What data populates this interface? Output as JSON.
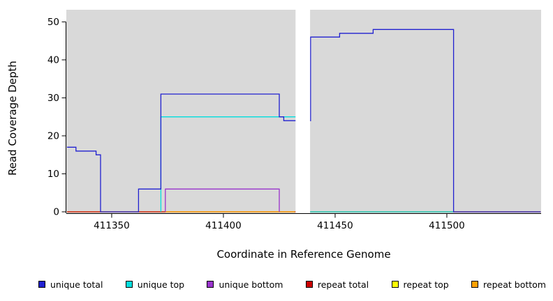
{
  "chart_data": {
    "type": "line",
    "title": "",
    "xlabel": "Coordinate in Reference Genome",
    "ylabel": "Read Coverage Depth",
    "xlim": [
      411329.7,
      411542.2
    ],
    "ylim": [
      -0.4,
      53.2
    ],
    "xticks": [
      411350,
      411400,
      411450,
      411500
    ],
    "yticks": [
      0,
      10,
      20,
      30,
      40,
      50
    ],
    "panel_background": "#d9d9d9",
    "masked_regions": [
      [
        411432.3,
        411438.8
      ]
    ],
    "grid": false,
    "legend_position": "bottom",
    "series": [
      {
        "id": "repeat-top",
        "name": "repeat top",
        "color": "#ffff00",
        "points": [
          [
            411330,
            0
          ],
          [
            411542,
            0
          ]
        ]
      },
      {
        "id": "repeat-total",
        "name": "repeat total",
        "color": "#cc0000",
        "points": [
          [
            411330,
            0
          ],
          [
            411542,
            0
          ]
        ]
      },
      {
        "id": "repeat-bottom",
        "name": "repeat bottom",
        "color": "#ffa000",
        "points": [
          [
            411374,
            0
          ],
          [
            411432,
            0
          ]
        ]
      },
      {
        "id": "unique-bottom",
        "name": "unique bottom",
        "color": "#9933cc",
        "points": [
          [
            411374,
            0
          ],
          [
            411374,
            6
          ],
          [
            411425,
            6
          ],
          [
            411425,
            0
          ]
        ]
      },
      {
        "id": "unique-top",
        "name": "unique top",
        "color": "#00dede",
        "points": [
          [
            411372,
            0
          ],
          [
            411372,
            25
          ],
          [
            411433,
            25
          ],
          [
            411433,
            0
          ],
          [
            411503,
            0
          ]
        ]
      },
      {
        "id": "unique-total",
        "name": "unique total",
        "color": "#2020d0",
        "points": [
          [
            411330,
            17
          ],
          [
            411334,
            17
          ],
          [
            411334,
            16
          ],
          [
            411343,
            16
          ],
          [
            411343,
            15
          ],
          [
            411345,
            15
          ],
          [
            411345,
            0
          ],
          [
            411362,
            0
          ],
          [
            411362,
            6
          ],
          [
            411372,
            6
          ],
          [
            411372,
            31
          ],
          [
            411425,
            31
          ],
          [
            411425,
            25
          ],
          [
            411427,
            25
          ],
          [
            411427,
            24
          ],
          [
            411439,
            24
          ],
          [
            411439,
            46
          ],
          [
            411452,
            46
          ],
          [
            411452,
            47
          ],
          [
            411467,
            47
          ],
          [
            411467,
            48
          ],
          [
            411503,
            48
          ],
          [
            411503,
            0
          ],
          [
            411542,
            0
          ]
        ]
      }
    ],
    "legend": [
      {
        "label": "unique total",
        "color": "#2020d0"
      },
      {
        "label": "unique top",
        "color": "#00dede"
      },
      {
        "label": "unique bottom",
        "color": "#9933cc"
      },
      {
        "label": "repeat total",
        "color": "#cc0000"
      },
      {
        "label": "repeat top",
        "color": "#ffff00"
      },
      {
        "label": "repeat bottom",
        "color": "#ffa000"
      }
    ]
  }
}
